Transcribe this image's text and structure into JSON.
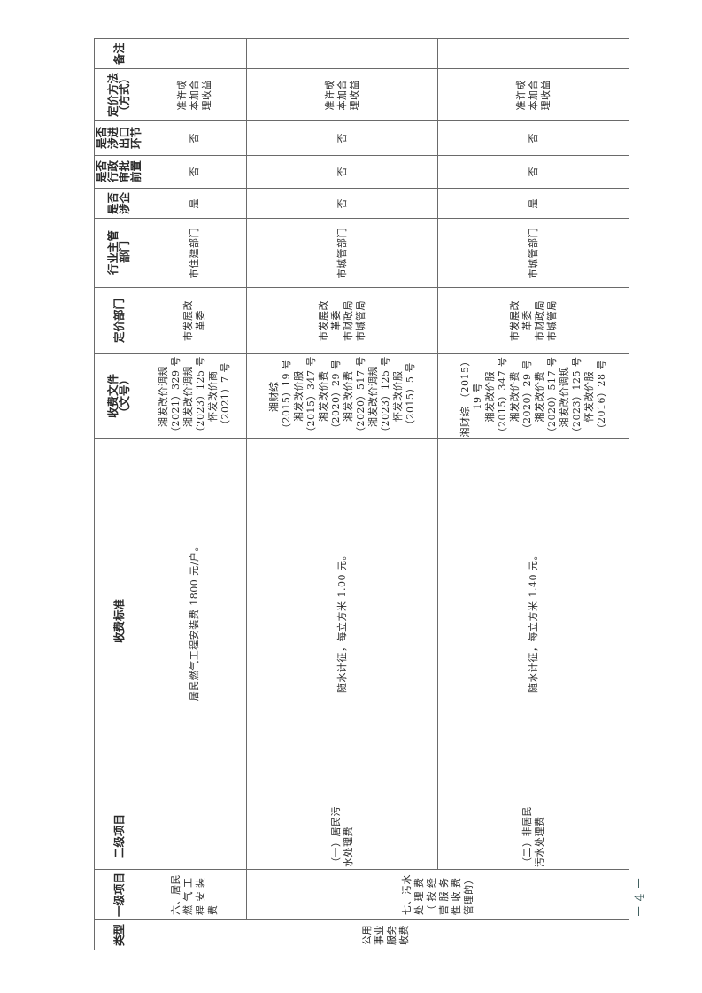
{
  "headers": {
    "type": "类型",
    "level1": "一级项目",
    "level2": "二级项目",
    "standard": "收费标准",
    "document": "收费文件\n（文号）",
    "pricing_dept": "定价部门",
    "industry_dept": "行业主管\n部门",
    "involves_enterprise": "是否\n涉企",
    "admin_approval": "是否\n行政\n审批\n前置",
    "import_export": "是否\n涉进\n出口\n环节",
    "pricing_method": "定价方法\n（方式）",
    "remarks": "备注"
  },
  "type_value": "公用\n事业\n服务\n收费",
  "rows": [
    {
      "level1": "六、居民\n燃 气 工\n程 安 装\n费",
      "level2": "",
      "standard": "居民燃气工程安装费 1800 元/户。",
      "document": "湘发改价调规\n（2021）329 号\n湘发改价调规\n（2023）125 号\n怀发改价商\n（2021）7 号",
      "pricing_dept": "市发展改\n革委",
      "industry_dept": "市住建部门",
      "involves_enterprise": "是",
      "admin_approval": "否",
      "import_export": "否",
      "pricing_method": "准许成\n本加合\n理收益",
      "remarks": ""
    },
    {
      "level2": "（一）居民污\n水处理费",
      "standard": "随水计征，每立方米 1.00 元。",
      "document": "湘财综\n（2015）19 号\n湘发改价服\n（2015）347 号\n湘发改价费\n（2020）29 号\n湘发改价费\n（2020）517 号\n湘发改价调规\n（2023）125 号\n怀发改价服\n（2015）5 号",
      "pricing_dept": "市发展改\n革委\n市财政局\n市城管局",
      "industry_dept": "市城管部门",
      "involves_enterprise": "否",
      "admin_approval": "否",
      "import_export": "否",
      "pricing_method": "准许成\n本加合\n理收益",
      "remarks": ""
    },
    {
      "level2": "（二）非居民\n污水处理费",
      "standard": "随水计征，每立方米 1.40 元。",
      "document": "湘财综 （2015）\n19 号\n湘发改价服\n（2015）347 号\n湘发改价费\n（2020）29 号\n湘发改价费\n（2020）517 号\n湘发改价调规\n（2023）125 号\n怀发改价服\n（2016）28 号",
      "pricing_dept": "市发展改\n革委\n市财政局\n市城管局",
      "industry_dept": "市城管部门",
      "involves_enterprise": "是",
      "admin_approval": "否",
      "import_export": "否",
      "pricing_method": "准许成\n本加合\n理收益",
      "remarks": ""
    }
  ],
  "level1_sewage": "七、污水\n处 理 费\n（ 按 经\n营 服 务\n性 收 费\n管理的）",
  "page_number": "－ 4 －"
}
